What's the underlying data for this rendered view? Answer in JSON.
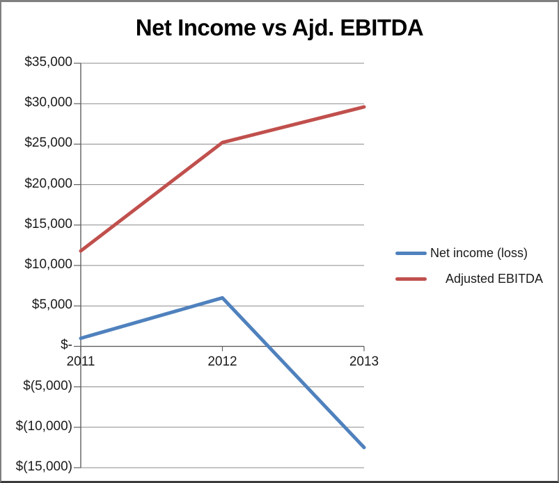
{
  "chart_data": {
    "type": "line",
    "title": "Net Income vs Ajd. EBITDA",
    "categories": [
      "2011",
      "2012",
      "2013"
    ],
    "series": [
      {
        "name": "Net income (loss)",
        "color": "#4F81BD",
        "values": [
          1000,
          6000,
          -12500
        ]
      },
      {
        "name": "Adjusted EBITDA",
        "color": "#C0504D",
        "values": [
          11800,
          25200,
          29600
        ]
      }
    ],
    "y_axis": {
      "min": -15000,
      "max": 35000,
      "step": 5000,
      "tick_labels": [
        "$35,000",
        "$30,000",
        "$25,000",
        "$20,000",
        "$15,000",
        "$10,000",
        "$5,000",
        "$-",
        "$(5,000)",
        "$(10,000)",
        "$(15,000)"
      ]
    },
    "x_axis": {
      "tick_labels": [
        "2011",
        "2012",
        "2013"
      ]
    },
    "legend_position": "right",
    "grid": true,
    "ylim": [
      -15000,
      35000
    ]
  },
  "palette": {
    "background": "#FFFFFF",
    "chart_border": "#7F7F7F",
    "gridline": "#8A8A8A",
    "axis": "#5E5E5E",
    "title_color": "#000000",
    "tick_label_color": "#1A1A1A",
    "series_blue": "#4F81BD",
    "series_red": "#C0504D"
  }
}
